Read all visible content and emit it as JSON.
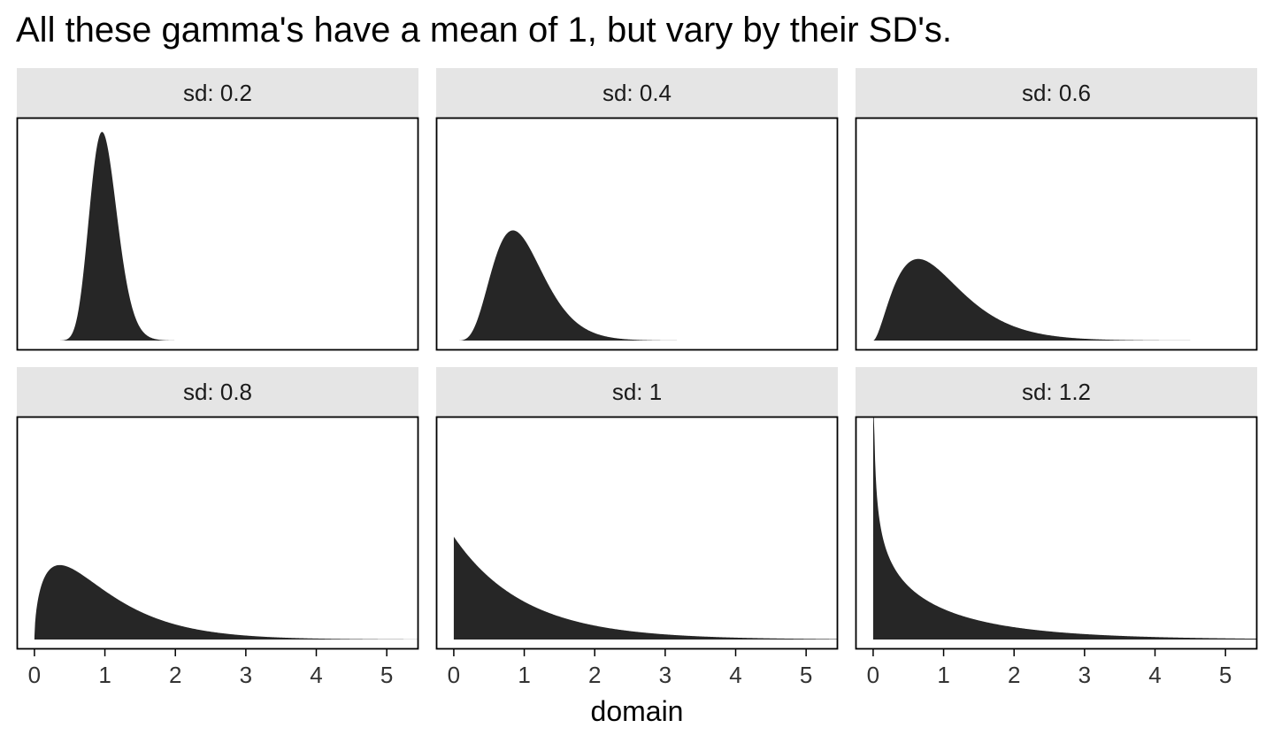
{
  "title": "All these gamma's have a mean of 1, but vary by their SD's.",
  "chart_data": {
    "type": "area",
    "title": "All these gamma's have a mean of 1, but vary by their SD's.",
    "xlabel": "domain",
    "ylabel": "",
    "xlim": [
      -0.25,
      5.45
    ],
    "x_ticks": [
      "0",
      "1",
      "2",
      "3",
      "4",
      "5"
    ],
    "grid": false,
    "fill_color": "#262626",
    "strip_color": "#e5e5e5",
    "distribution": "gamma",
    "mean": 1,
    "panels": [
      {
        "label": "sd: 0.2",
        "sd": 0.2,
        "ylim": [
          0,
          2.09
        ]
      },
      {
        "label": "sd: 0.4",
        "sd": 0.4,
        "ylim": [
          0,
          2.09
        ]
      },
      {
        "label": "sd: 0.6",
        "sd": 0.6,
        "ylim": [
          0,
          2.09
        ]
      },
      {
        "label": "sd: 0.8",
        "sd": 0.8,
        "ylim": [
          0,
          2.09
        ]
      },
      {
        "label": "sd: 1",
        "sd": 1.0,
        "ylim": [
          0,
          2.09
        ]
      },
      {
        "label": "sd: 1.2",
        "sd": 1.2,
        "ylim": [
          0,
          2.09
        ]
      }
    ]
  }
}
